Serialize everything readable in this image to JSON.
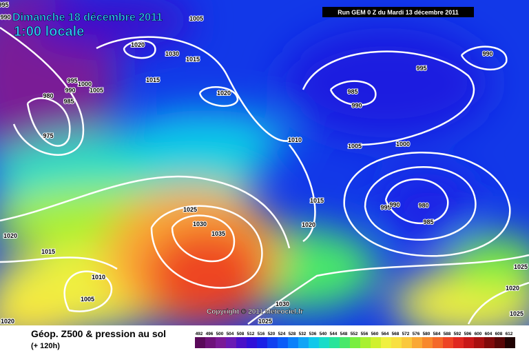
{
  "header": {
    "title": "Dimanche 18 décembre 2011",
    "time": "1:00 locale",
    "run": "Run GEM 0 Z du Mardi 13 décembre 2011"
  },
  "copyright": "Copyright © 2011 Meteociel.fr",
  "legend": {
    "title": "Géop. Z500 & pression au sol",
    "lead": "(+ 120h)"
  },
  "isobar_labels": [
    "995",
    "990",
    "1005",
    "1020",
    "1030",
    "1015",
    "1015",
    "995",
    "1000",
    "990",
    "1005",
    "980",
    "985",
    "975",
    "1020",
    "985",
    "990",
    "995",
    "990",
    "1010",
    "1005",
    "1000",
    "1015",
    "995",
    "990",
    "980",
    "985",
    "1020",
    "1025",
    "1030",
    "1035",
    "1020",
    "1015",
    "1010",
    "1005",
    "1020",
    "1030",
    "1025",
    "1025",
    "1020",
    "1025"
  ],
  "scale": {
    "values": [
      492,
      496,
      500,
      504,
      508,
      512,
      516,
      520,
      524,
      528,
      532,
      536,
      540,
      544,
      548,
      552,
      556,
      560,
      564,
      568,
      572,
      576,
      580,
      584,
      588,
      592,
      596,
      600,
      604,
      608,
      612
    ],
    "colors": [
      "#5a0a5a",
      "#6e127a",
      "#7a1a96",
      "#6a1ab4",
      "#4a10c8",
      "#3010d8",
      "#1a20e6",
      "#1040f0",
      "#0a5cf8",
      "#0a80fa",
      "#10a4f6",
      "#10c8ea",
      "#18dcc8",
      "#28e49a",
      "#48e86a",
      "#78ee40",
      "#a8f030",
      "#d0f030",
      "#f0f040",
      "#f8e040",
      "#fac83c",
      "#faa834",
      "#f8882c",
      "#f46828",
      "#ee4424",
      "#e02820",
      "#c81818",
      "#a81010",
      "#800a0a",
      "#580606",
      "#200202"
    ]
  }
}
